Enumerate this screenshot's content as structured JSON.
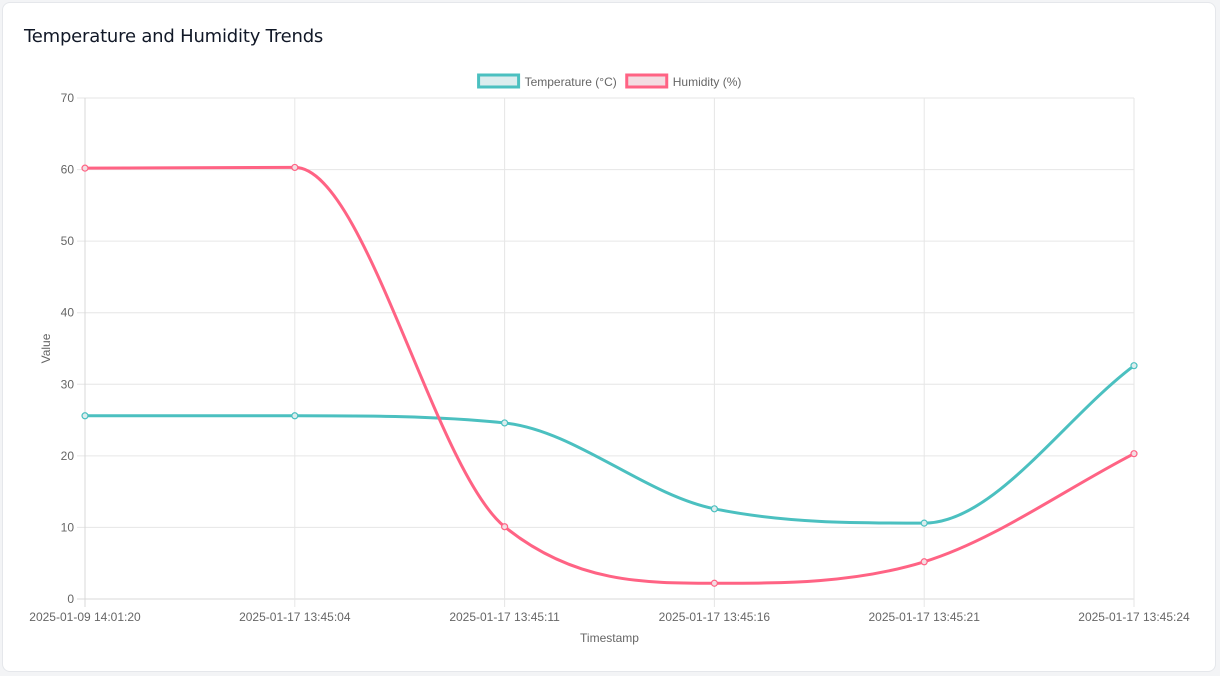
{
  "card": {
    "title": "Temperature and Humidity Trends"
  },
  "chart_data": {
    "type": "line",
    "title": "",
    "xlabel": "Timestamp",
    "ylabel": "Value",
    "x": [
      "2025-01-09 14:01:20",
      "2025-01-17 13:45:04",
      "2025-01-17 13:45:11",
      "2025-01-17 13:45:16",
      "2025-01-17 13:45:21",
      "2025-01-17 13:45:24"
    ],
    "ylim": [
      0,
      70
    ],
    "yticks": [
      0,
      10,
      20,
      30,
      40,
      50,
      60,
      70
    ],
    "grid": true,
    "legend_position": "top-center",
    "series": [
      {
        "name": "Temperature (°C)",
        "color": "#4bc0c0",
        "fill": "#dcedee",
        "values": [
          25.6,
          25.6,
          24.6,
          12.6,
          10.6,
          32.6
        ]
      },
      {
        "name": "Humidity (%)",
        "color": "#ff6384",
        "fill": "#f3dde2",
        "values": [
          60.2,
          60.3,
          10.1,
          2.2,
          5.2,
          20.3
        ]
      }
    ]
  }
}
